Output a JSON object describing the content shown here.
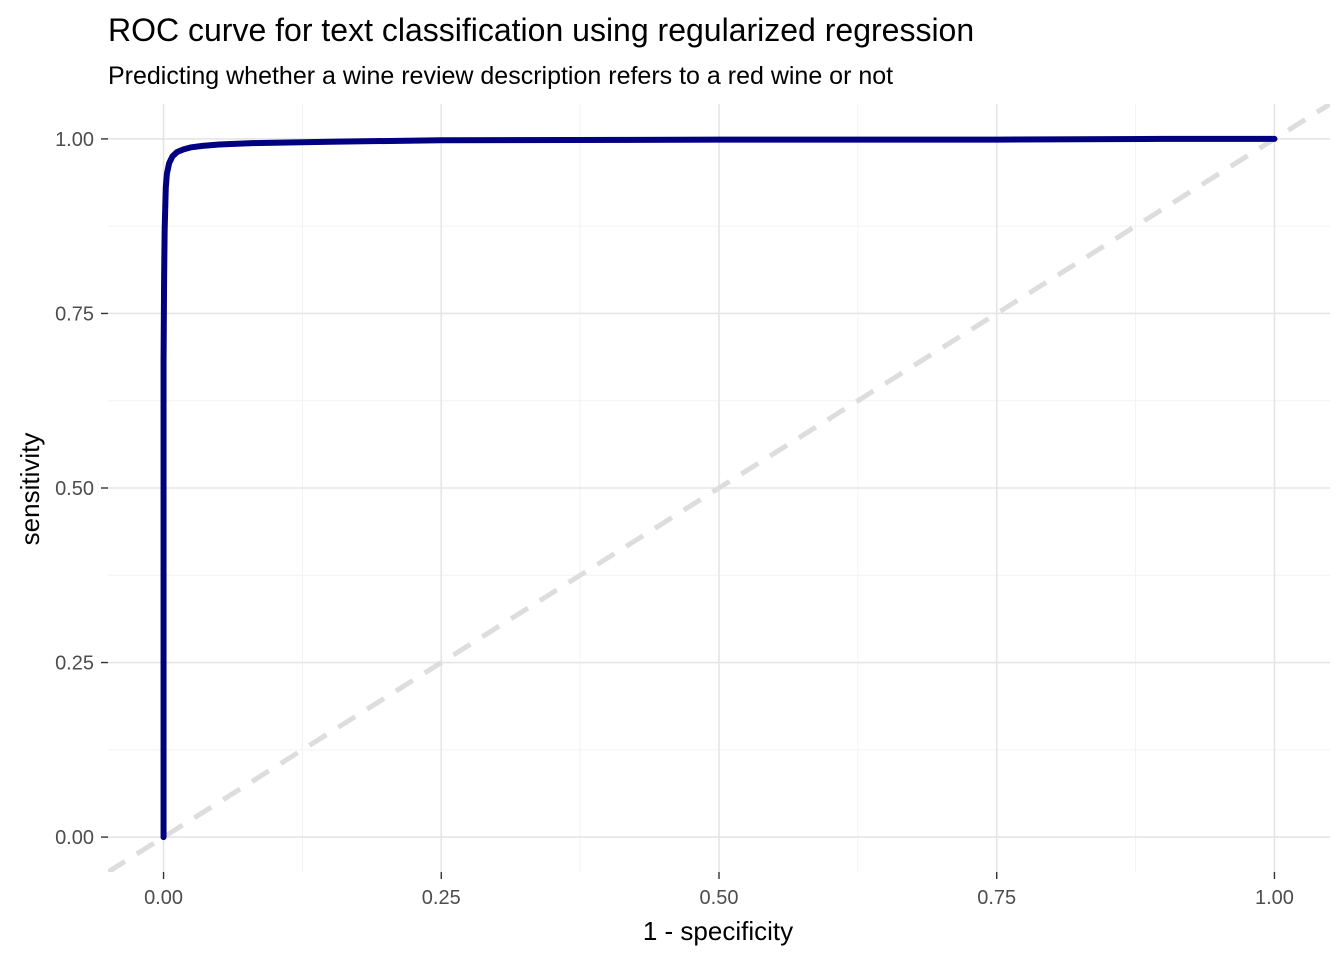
{
  "chart_data": {
    "type": "line",
    "title": "ROC curve for text classification using regularized regression",
    "subtitle": "Predicting whether a wine review description refers to a red wine or not",
    "xlabel": "1 - specificity",
    "ylabel": "sensitivity",
    "xlim": [
      -0.05,
      1.05
    ],
    "ylim": [
      -0.05,
      1.05
    ],
    "x_ticks": [
      "0.00",
      "0.25",
      "0.50",
      "0.75",
      "1.00"
    ],
    "y_ticks": [
      "0.00",
      "0.25",
      "0.50",
      "0.75",
      "1.00"
    ],
    "grid": true,
    "legend": "none",
    "series": [
      {
        "line_color": "#000080",
        "x": [
          0.0,
          0.0,
          0.0005,
          0.001,
          0.002,
          0.003,
          0.005,
          0.008,
          0.012,
          0.018,
          0.025,
          0.035,
          0.05,
          0.08,
          0.15,
          0.25,
          0.5,
          0.75,
          0.9,
          1.0
        ],
        "y": [
          0.0,
          0.68,
          0.8,
          0.87,
          0.93,
          0.95,
          0.965,
          0.975,
          0.981,
          0.985,
          0.988,
          0.99,
          0.992,
          0.994,
          0.996,
          0.998,
          0.999,
          0.999,
          1.0,
          1.0
        ]
      }
    ],
    "reference_line": {
      "style": "dashed",
      "color": "#dddddd",
      "x": [
        -0.05,
        1.05
      ],
      "y": [
        -0.05,
        1.05
      ]
    }
  }
}
